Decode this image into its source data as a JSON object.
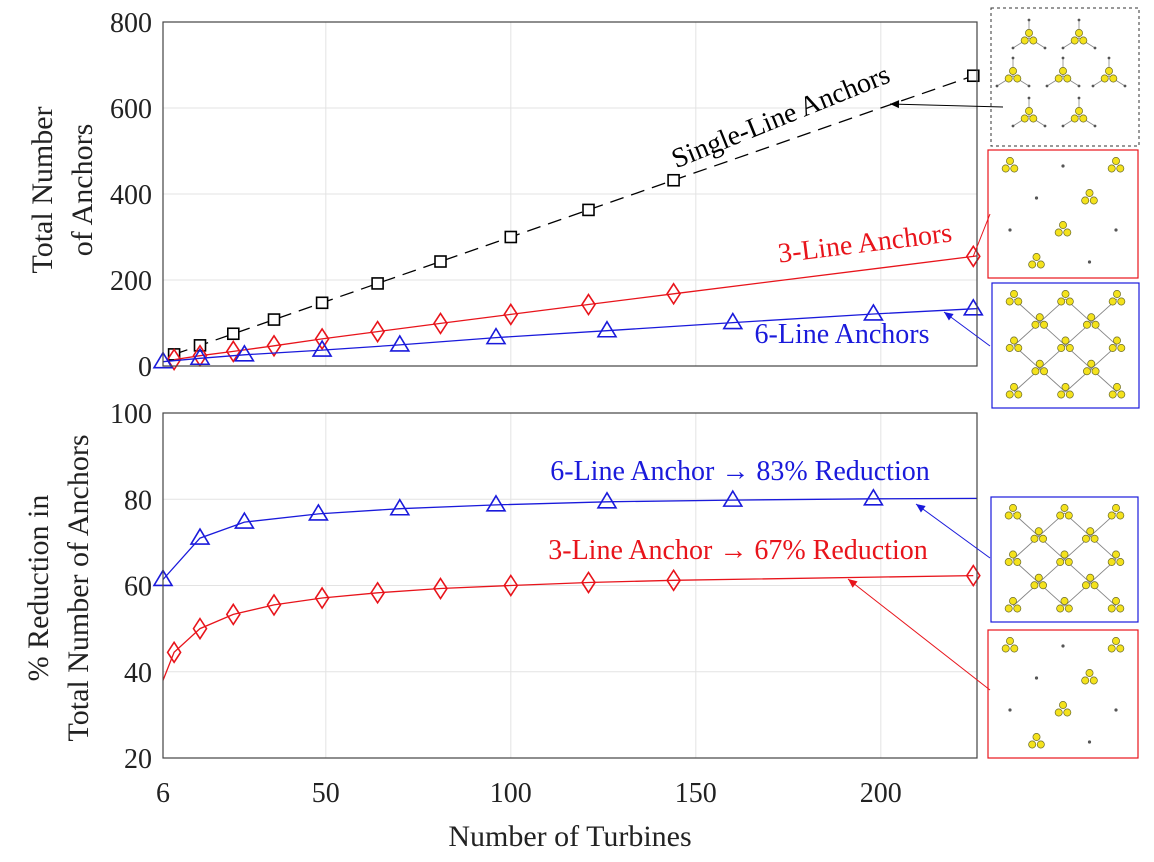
{
  "chart_data": [
    {
      "type": "line",
      "xlabel": "",
      "ylabel": [
        "Total Number",
        "of Anchors"
      ],
      "xlim": [
        6,
        226
      ],
      "ylim": [
        0,
        800
      ],
      "yticks": [
        0,
        200,
        400,
        600,
        800
      ],
      "xticks": [
        6,
        50,
        100,
        150,
        200
      ],
      "grid": true,
      "series": [
        {
          "name": "Single-Line Anchors",
          "color": "#000000",
          "marker": "square",
          "line": "dashed",
          "label": "Single-Line Anchors",
          "x": [
            9,
            16,
            25,
            36,
            49,
            64,
            81,
            100,
            121,
            144,
            225
          ],
          "y": [
            27,
            48,
            75,
            108,
            147,
            192,
            243,
            300,
            363,
            432,
            675
          ]
        },
        {
          "name": "3-Line Anchors",
          "color": "#e8141b",
          "marker": "diamond",
          "line": "solid",
          "label": "3-Line Anchors",
          "x": [
            9,
            16,
            25,
            36,
            49,
            64,
            81,
            100,
            121,
            144,
            225
          ],
          "y": [
            15,
            24,
            34,
            47,
            63,
            80,
            99,
            120,
            143,
            168,
            255
          ]
        },
        {
          "name": "6-Line Anchors",
          "color": "#1a1adb",
          "marker": "triangle",
          "line": "solid",
          "label": "6-Line Anchors",
          "x": [
            6,
            16,
            28,
            49,
            70,
            96,
            126,
            160,
            198,
            225
          ],
          "y": [
            10,
            18,
            26,
            37,
            49,
            66,
            82,
            101,
            121,
            133
          ]
        }
      ]
    },
    {
      "type": "line",
      "xlabel": "Number of Turbines",
      "ylabel": [
        "% Reduction in",
        "Total Number of Anchors"
      ],
      "xlim": [
        6,
        226
      ],
      "ylim": [
        20,
        100
      ],
      "yticks": [
        20,
        40,
        60,
        80,
        100
      ],
      "xticks": [
        6,
        50,
        100,
        150,
        200
      ],
      "grid": true,
      "series": [
        {
          "name": "6-Line Anchor",
          "color": "#1a1adb",
          "marker": "triangle",
          "line": "solid",
          "label": "6-Line Anchor → 83% Reduction",
          "x": [
            6,
            16,
            28,
            48,
            70,
            96,
            126,
            160,
            198,
            226
          ],
          "y": [
            61.4,
            71,
            74.7,
            76.6,
            77.8,
            78.7,
            79.4,
            79.8,
            80.1,
            80.2
          ],
          "marked": [
            true,
            true,
            true,
            true,
            true,
            true,
            true,
            true,
            true,
            false
          ]
        },
        {
          "name": "3-Line Anchor",
          "color": "#e8141b",
          "marker": "diamond",
          "line": "solid",
          "label": "3-Line Anchor → 67% Reduction",
          "x": [
            6,
            9,
            16,
            25,
            36,
            49,
            64,
            81,
            100,
            121,
            144,
            225
          ],
          "y": [
            38,
            44.5,
            50,
            53.3,
            55.5,
            57.1,
            58.3,
            59.3,
            60,
            60.7,
            61.2,
            62.3
          ],
          "marked": [
            false,
            true,
            true,
            true,
            true,
            true,
            true,
            true,
            true,
            true,
            true,
            true
          ]
        }
      ]
    }
  ]
}
